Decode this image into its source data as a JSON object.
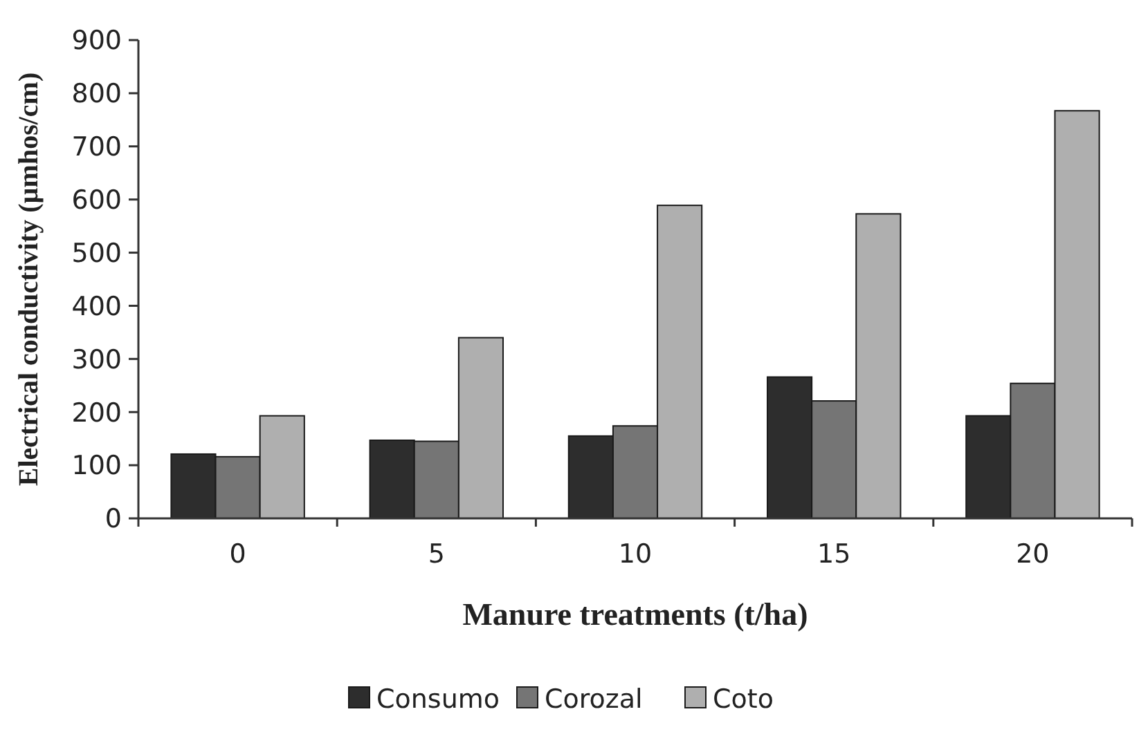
{
  "chart_data": {
    "type": "bar",
    "xlabel": "Manure treatments (t/ha)",
    "ylabel": "Electrical conductivity (µmhos/cm)",
    "categories": [
      "0",
      "5",
      "10",
      "15",
      "20"
    ],
    "series": [
      {
        "name": "Consumo",
        "color": "#2d2d2d",
        "values": [
          121,
          147,
          155,
          266,
          193
        ]
      },
      {
        "name": "Corozal",
        "color": "#757575",
        "values": [
          116,
          145,
          174,
          221,
          254
        ]
      },
      {
        "name": "Coto",
        "color": "#afafaf",
        "values": [
          193,
          340,
          589,
          573,
          767
        ]
      }
    ],
    "ylim": [
      0,
      900
    ],
    "yticks": [
      0,
      100,
      200,
      300,
      400,
      500,
      600,
      700,
      800,
      900
    ],
    "grid": false,
    "legend": "bottom"
  }
}
